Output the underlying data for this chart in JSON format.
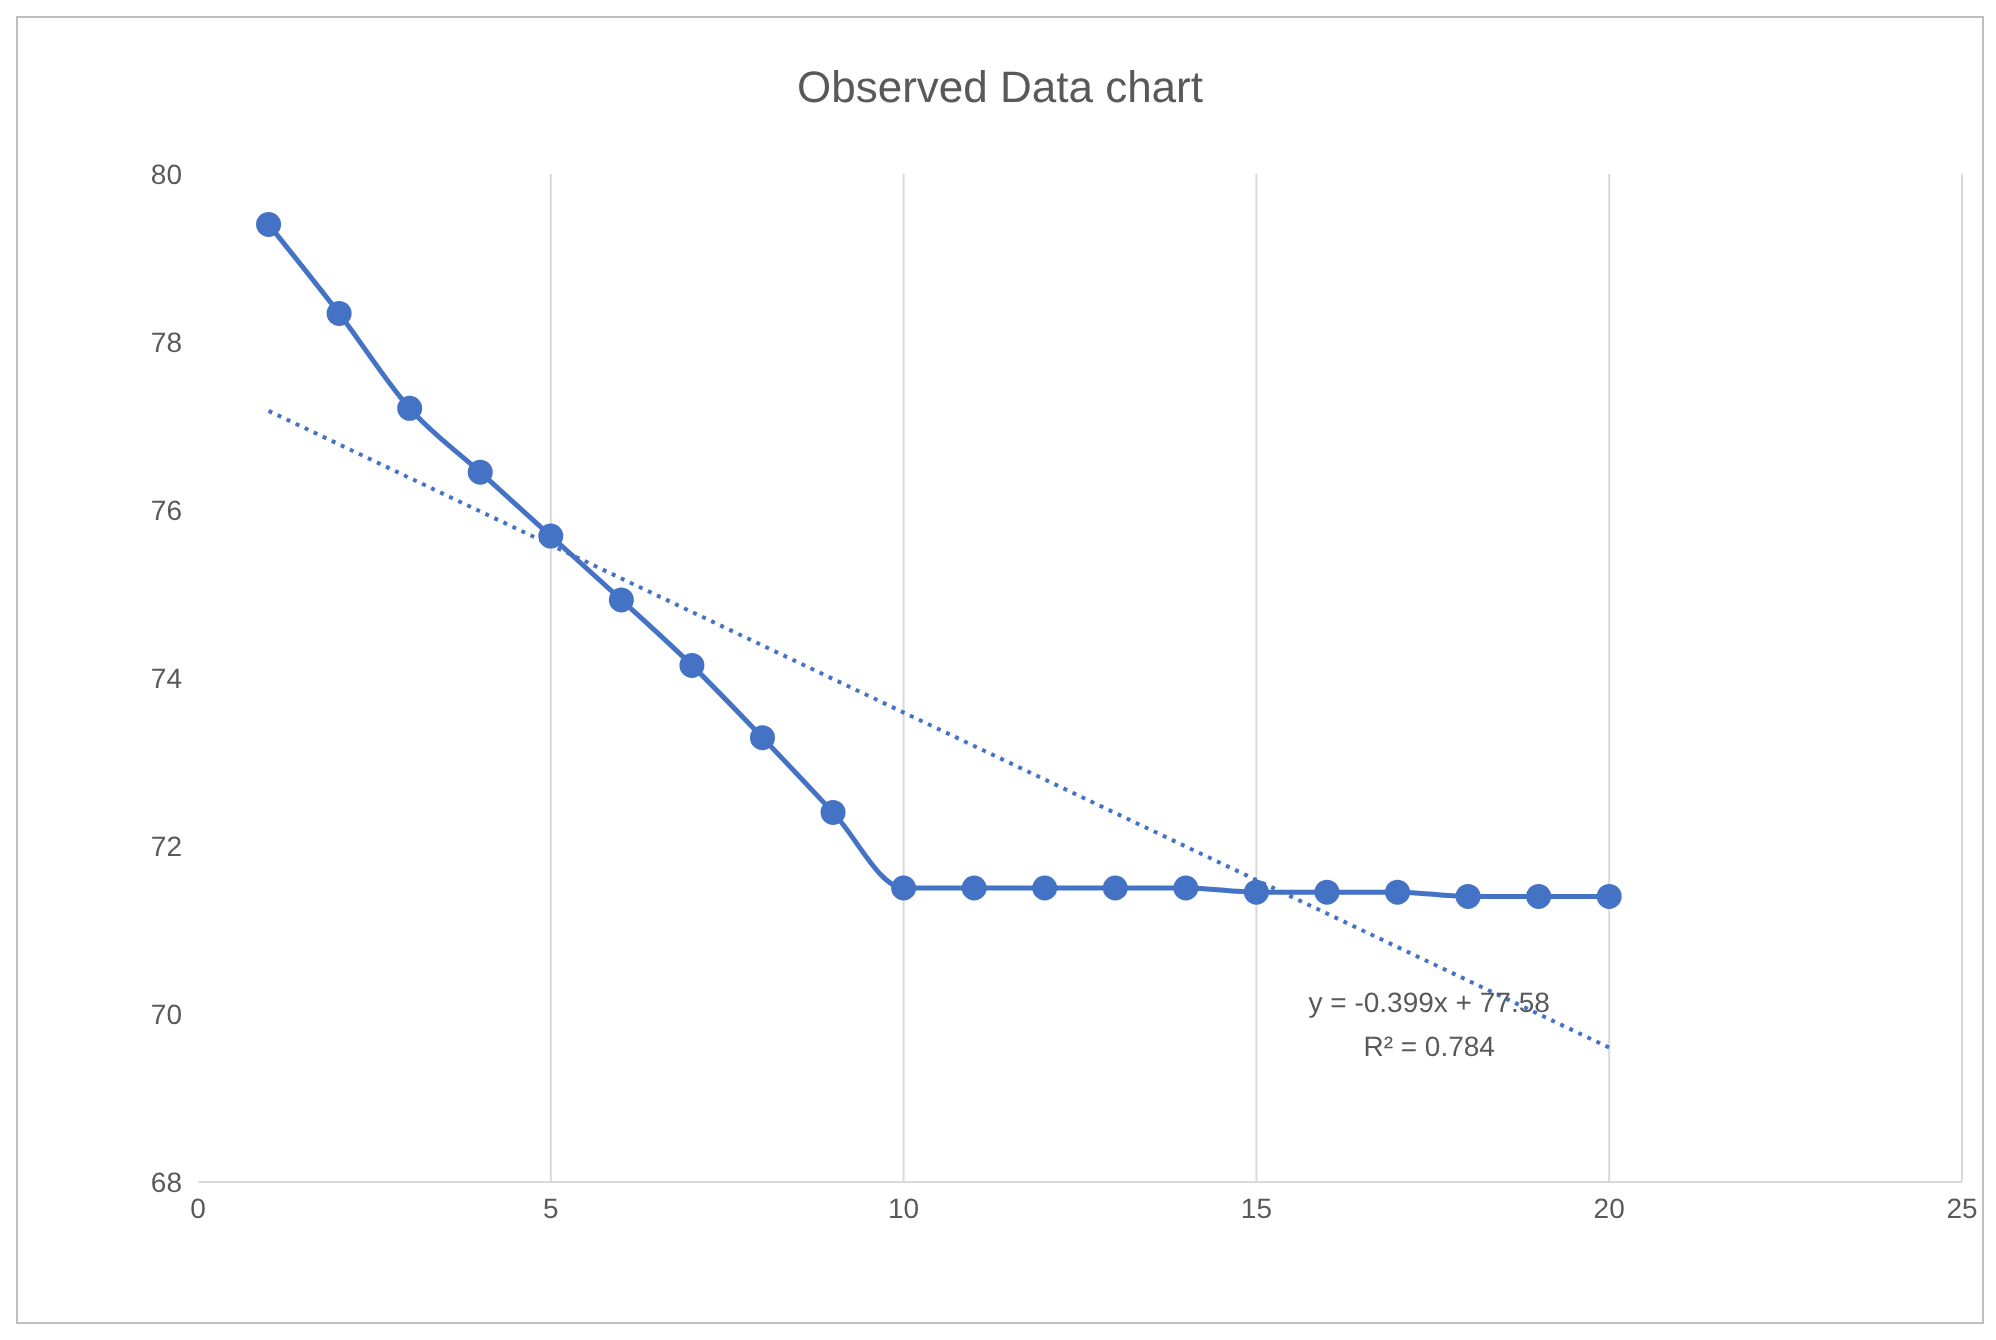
{
  "chart_data": {
    "type": "line",
    "title": "Observed Data chart",
    "x": [
      1,
      2,
      3,
      4,
      5,
      6,
      7,
      8,
      9,
      10,
      11,
      12,
      13,
      14,
      15,
      16,
      17,
      18,
      19,
      20
    ],
    "series": [
      {
        "color": "#4472c4",
        "values": [
          79.4,
          78.34,
          77.21,
          76.45,
          75.69,
          74.93,
          74.15,
          73.29,
          72.4,
          71.5,
          71.5,
          71.5,
          71.5,
          71.5,
          71.45,
          71.45,
          71.45,
          71.4,
          71.4,
          71.4
        ],
        "marker": "circle",
        "line_style": "solid"
      },
      {
        "type": "line",
        "color": "#4472c4",
        "x": [
          1,
          20
        ],
        "values": [
          77.18,
          69.6
        ],
        "marker": "none",
        "line_style": "dotted"
      }
    ],
    "xlim": [
      0,
      25
    ],
    "xticks": [
      0,
      5,
      10,
      15,
      20,
      25
    ],
    "ylim": [
      68,
      80
    ],
    "yticks": [
      68,
      70,
      72,
      74,
      76,
      78,
      80
    ],
    "grid": "x",
    "annotations": [
      "y = -0.399x + 77.58",
      "R² = 0.784"
    ]
  }
}
